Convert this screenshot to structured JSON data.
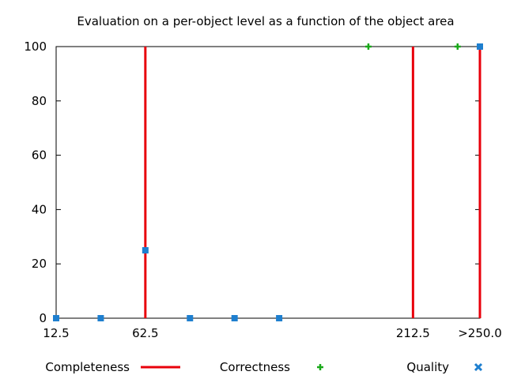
{
  "chart_data": {
    "type": "scatter",
    "title": "Evaluation on a per-object level as a function of the object area",
    "xlabel": "",
    "ylabel": "",
    "xlim": [
      12.5,
      250
    ],
    "ylim": [
      0,
      100
    ],
    "x_tick_values": [
      12.5,
      62.5,
      212.5,
      250
    ],
    "x_tick_labels": [
      "12.5",
      "62.5",
      "212.5",
      ">250.0"
    ],
    "y_ticks": [
      0,
      20,
      40,
      60,
      80,
      100
    ],
    "grid": false,
    "legend_position": "bottom",
    "series": [
      {
        "name": "Completeness",
        "style": "impulse",
        "color": "#e8000b",
        "points": [
          {
            "x": 62.5,
            "y": 100
          },
          {
            "x": 212.5,
            "y": 100
          },
          {
            "x": 250,
            "y": 100
          }
        ]
      },
      {
        "name": "Correctness",
        "style": "plus",
        "color": "#1aa91a",
        "points": [
          {
            "x": 187.5,
            "y": 100
          },
          {
            "x": 237.5,
            "y": 100
          },
          {
            "x": 250,
            "y": 100
          }
        ]
      },
      {
        "name": "Quality",
        "style": "square",
        "color": "#1e7fcf",
        "points": [
          {
            "x": 12.5,
            "y": 0
          },
          {
            "x": 37.5,
            "y": 0
          },
          {
            "x": 62.5,
            "y": 25
          },
          {
            "x": 87.5,
            "y": 0
          },
          {
            "x": 112.5,
            "y": 0
          },
          {
            "x": 137.5,
            "y": 0
          },
          {
            "x": 250,
            "y": 100
          }
        ]
      }
    ]
  }
}
